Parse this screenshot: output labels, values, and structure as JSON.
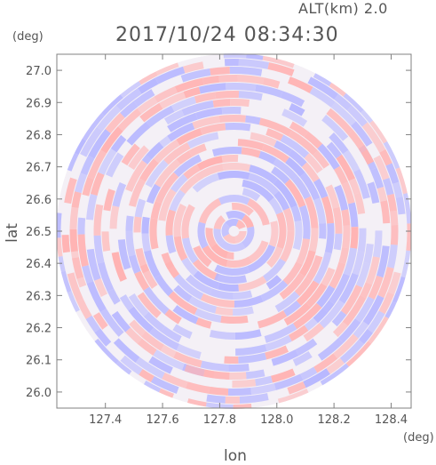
{
  "header": {
    "altitude_label": "ALT(km) 2.0",
    "timestamp": "2017/10/24 08:34:30"
  },
  "axes": {
    "y_unit": "(deg)",
    "x_unit": "(deg)",
    "xlabel": "lon",
    "ylabel": "lat"
  },
  "colors": {
    "positive": "#ffb3b3",
    "negative": "#b8b8ff",
    "axis": "#808080"
  },
  "chart_data": {
    "type": "heatmap",
    "title": "2017/10/24 08:34:30",
    "xlabel": "lon",
    "ylabel": "lat",
    "xlim": [
      127.23,
      128.47
    ],
    "ylim": [
      25.95,
      27.05
    ],
    "x_ticks": [
      127.4,
      127.6,
      127.8,
      128.0,
      128.2,
      128.4
    ],
    "x_tick_labels": [
      "127.4",
      "127.6",
      "127.8",
      "128.0",
      "128.2",
      "128.4"
    ],
    "y_ticks": [
      26.0,
      26.1,
      26.2,
      26.3,
      26.4,
      26.5,
      26.6,
      26.7,
      26.8,
      26.9,
      27.0
    ],
    "y_tick_labels": [
      "26.0",
      "26.1",
      "26.2",
      "26.3",
      "26.4",
      "26.5",
      "26.6",
      "26.7",
      "26.8",
      "26.9",
      "27.0"
    ],
    "scan_center": [
      127.85,
      26.5
    ],
    "scan_radius_deg_lon": 0.6,
    "grid": false,
    "description_of_values": "radial field, alternating positive (red) and negative (blue) annular patches"
  }
}
